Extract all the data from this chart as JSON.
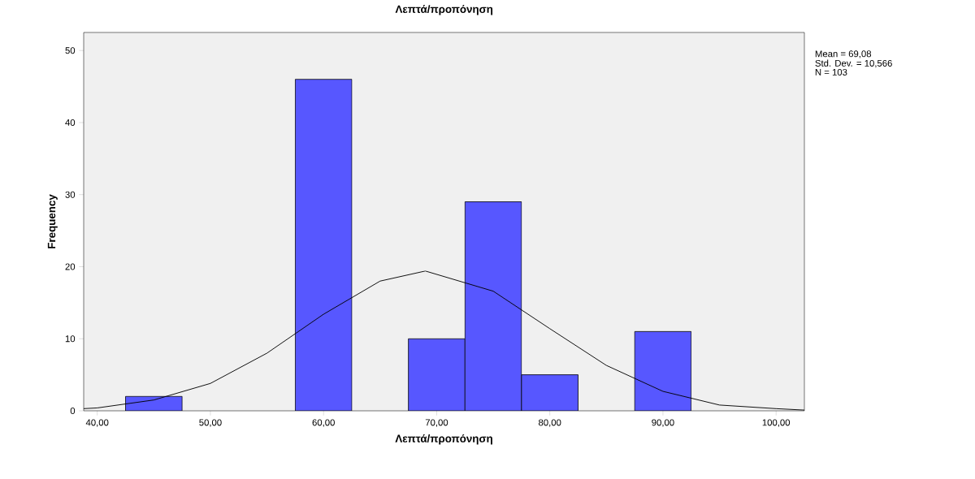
{
  "chart_data": {
    "type": "histogram",
    "title": "Λεπτά/προπόνηση",
    "xlabel": "Λεπτά/προπόνηση",
    "ylabel": "Frequency",
    "bins": [
      42.5,
      47.5,
      52.5,
      57.5,
      62.5,
      67.5,
      72.5,
      77.5,
      82.5,
      87.5,
      92.5
    ],
    "values": [
      2,
      0,
      0,
      46,
      0,
      10,
      29,
      5,
      0,
      11
    ],
    "color": "#5757ff",
    "series": [
      {
        "type": "line",
        "color": "#000000",
        "x": [
          38.8,
          40,
          45,
          50,
          55,
          60,
          65,
          69,
          75,
          80,
          85,
          90,
          95,
          100,
          102.5
        ],
        "values": [
          0.3,
          0.4,
          1.5,
          3.8,
          8.0,
          13.4,
          18.0,
          19.4,
          16.6,
          11.4,
          6.3,
          2.7,
          0.8,
          0.3,
          0.1
        ]
      }
    ],
    "xlim": [
      38.8,
      102.5
    ],
    "ylim": [
      0,
      52.5
    ],
    "xticks": [
      {
        "value": 40,
        "label": "40,00"
      },
      {
        "value": 50,
        "label": "50,00"
      },
      {
        "value": 60,
        "label": "60,00"
      },
      {
        "value": 70,
        "label": "70,00"
      },
      {
        "value": 80,
        "label": "80,00"
      },
      {
        "value": 90,
        "label": "90,00"
      },
      {
        "value": 100,
        "label": "100,00"
      }
    ],
    "yticks": [
      0,
      10,
      20,
      30,
      40,
      50
    ],
    "annotations": [
      "Mean = 69,08",
      "Std. Dev. = 10,566",
      "N = 103"
    ]
  }
}
